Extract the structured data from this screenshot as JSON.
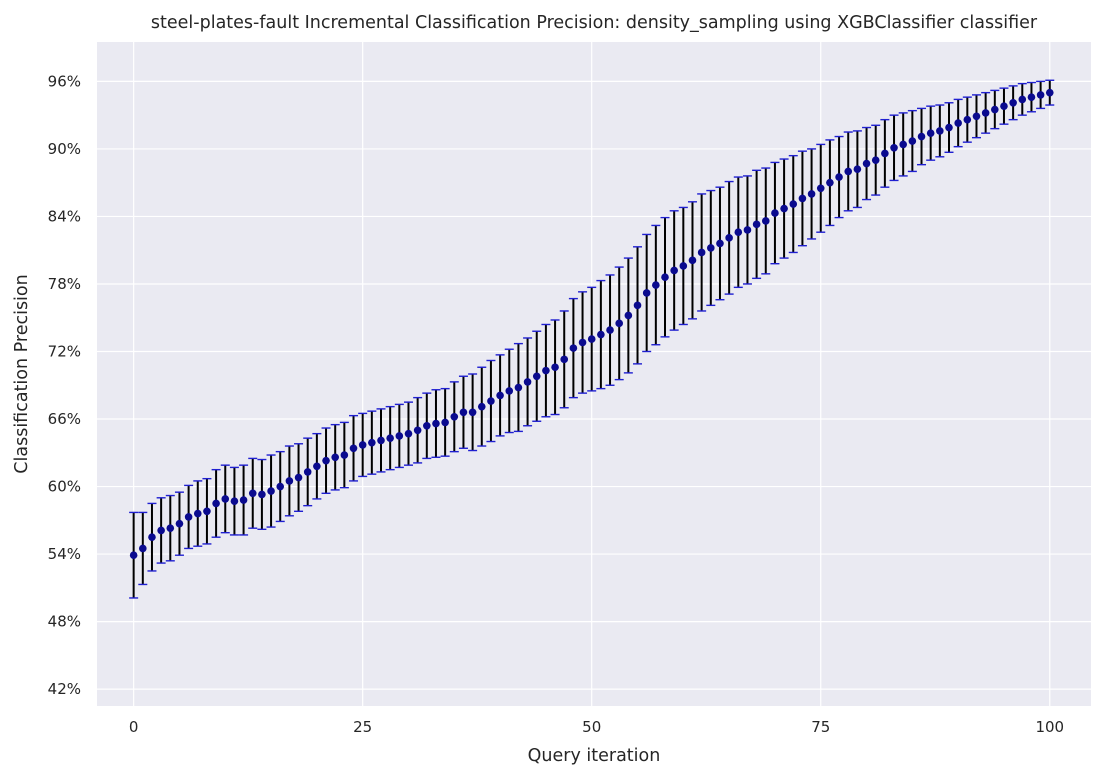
{
  "chart_data": {
    "type": "scatter",
    "title": "steel-plates-fault Incremental Classification Precision: density_sampling using XGBClassifier classifier",
    "xlabel": "Query iteration",
    "ylabel": "Classification Precision",
    "xlim": [
      -4,
      104.5
    ],
    "ylim": [
      40.5,
      99.5
    ],
    "x_ticks": [
      0,
      25,
      50,
      75,
      100
    ],
    "x_tick_labels": [
      "0",
      "25",
      "50",
      "75",
      "100"
    ],
    "y_ticks": [
      42,
      48,
      54,
      60,
      66,
      72,
      78,
      84,
      90,
      96
    ],
    "y_tick_labels": [
      "42%",
      "48%",
      "54%",
      "60%",
      "66%",
      "72%",
      "78%",
      "84%",
      "90%",
      "96%"
    ],
    "grid": true,
    "background_color": "#eaeaf2",
    "point_color": "#0a0a8f",
    "errorbar_color": "#000000",
    "cap_color": "#1f1fd1",
    "series": [
      {
        "x": [
          0,
          1,
          2,
          3,
          4,
          5,
          6,
          7,
          8,
          9,
          10,
          11,
          12,
          13,
          14,
          15,
          16,
          17,
          18,
          19,
          20,
          21,
          22,
          23,
          24,
          25,
          26,
          27,
          28,
          29,
          30,
          31,
          32,
          33,
          34,
          35,
          36,
          37,
          38,
          39,
          40,
          41,
          42,
          43,
          44,
          45,
          46,
          47,
          48,
          49,
          50,
          51,
          52,
          53,
          54,
          55,
          56,
          57,
          58,
          59,
          60,
          61,
          62,
          63,
          64,
          65,
          66,
          67,
          68,
          69,
          70,
          71,
          72,
          73,
          74,
          75,
          76,
          77,
          78,
          79,
          80,
          81,
          82,
          83,
          84,
          85,
          86,
          87,
          88,
          89,
          90,
          91,
          92,
          93,
          94,
          95,
          96,
          97,
          98,
          99,
          100
        ],
        "y": [
          53.9,
          54.5,
          55.5,
          56.1,
          56.3,
          56.7,
          57.3,
          57.6,
          57.8,
          58.5,
          58.9,
          58.7,
          58.8,
          59.4,
          59.3,
          59.6,
          60.0,
          60.5,
          60.8,
          61.3,
          61.8,
          62.3,
          62.6,
          62.8,
          63.4,
          63.7,
          63.9,
          64.1,
          64.3,
          64.5,
          64.7,
          65.0,
          65.4,
          65.6,
          65.7,
          66.2,
          66.6,
          66.6,
          67.1,
          67.6,
          68.1,
          68.5,
          68.8,
          69.3,
          69.8,
          70.3,
          70.6,
          71.3,
          72.3,
          72.8,
          73.1,
          73.5,
          73.9,
          74.5,
          75.2,
          76.1,
          77.2,
          77.9,
          78.6,
          79.2,
          79.6,
          80.1,
          80.8,
          81.2,
          81.6,
          82.1,
          82.6,
          82.8,
          83.3,
          83.6,
          84.3,
          84.7,
          85.1,
          85.6,
          86.0,
          86.5,
          87.0,
          87.5,
          88.0,
          88.2,
          88.7,
          89.0,
          89.6,
          90.1,
          90.4,
          90.7,
          91.1,
          91.4,
          91.6,
          91.9,
          92.3,
          92.6,
          92.9,
          93.2,
          93.5,
          93.8,
          94.1,
          94.4,
          94.6,
          94.8,
          95.0
        ],
        "yerr": [
          3.8,
          3.2,
          3.0,
          2.9,
          2.9,
          2.8,
          2.8,
          2.9,
          2.9,
          3.0,
          3.0,
          3.0,
          3.1,
          3.1,
          3.1,
          3.2,
          3.1,
          3.1,
          3.0,
          3.0,
          2.9,
          2.9,
          2.9,
          2.9,
          2.9,
          2.8,
          2.8,
          2.8,
          2.8,
          2.8,
          2.8,
          2.9,
          2.9,
          3.0,
          3.0,
          3.1,
          3.2,
          3.4,
          3.5,
          3.6,
          3.6,
          3.7,
          3.9,
          3.9,
          4.0,
          4.1,
          4.2,
          4.3,
          4.4,
          4.5,
          4.6,
          4.8,
          4.9,
          5.0,
          5.1,
          5.2,
          5.2,
          5.3,
          5.3,
          5.3,
          5.2,
          5.2,
          5.2,
          5.1,
          5.0,
          5.0,
          4.9,
          4.8,
          4.8,
          4.7,
          4.5,
          4.4,
          4.3,
          4.2,
          4.0,
          3.9,
          3.8,
          3.6,
          3.5,
          3.4,
          3.2,
          3.1,
          3.0,
          2.9,
          2.8,
          2.7,
          2.5,
          2.4,
          2.3,
          2.2,
          2.1,
          2.0,
          1.9,
          1.8,
          1.7,
          1.6,
          1.5,
          1.4,
          1.3,
          1.2,
          1.1
        ]
      }
    ]
  }
}
